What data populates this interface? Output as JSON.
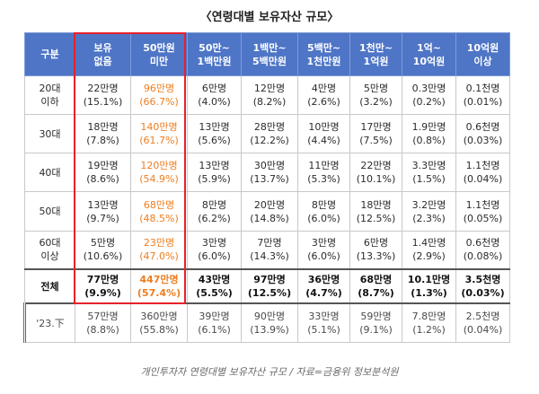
{
  "title": "〈연령대별 보유자산 규모〉",
  "headers": [
    [
      "구분"
    ],
    [
      "보유",
      "없음"
    ],
    [
      "50만원",
      "미만"
    ],
    [
      "50만~",
      "1백만원"
    ],
    [
      "1백만~",
      "5백만원"
    ],
    [
      "5백만~",
      "1천만원"
    ],
    [
      "1천만~",
      "1억원"
    ],
    [
      "1억~",
      "10억원"
    ],
    [
      "10억원",
      "이상"
    ]
  ],
  "rows": [
    {
      "label": [
        "20대",
        "이하"
      ],
      "cells": [
        [
          "22만명",
          "(15.1%)"
        ],
        [
          "96만명",
          "(66.7%)"
        ],
        [
          "6만명",
          "(4.0%)"
        ],
        [
          "12만명",
          "(8.2%)"
        ],
        [
          "4만명",
          "(2.6%)"
        ],
        [
          "5만명",
          "(3.2%)"
        ],
        [
          "0.3만명",
          "(0.2%)"
        ],
        [
          "0.1천명",
          "(0.01%)"
        ]
      ]
    },
    {
      "label": [
        "30대"
      ],
      "cells": [
        [
          "18만명",
          "(7.8%)"
        ],
        [
          "140만명",
          "(61.7%)"
        ],
        [
          "13만명",
          "(5.6%)"
        ],
        [
          "28만명",
          "(12.2%)"
        ],
        [
          "10만명",
          "(4.4%)"
        ],
        [
          "17만명",
          "(7.5%)"
        ],
        [
          "1.9만명",
          "(0.8%)"
        ],
        [
          "0.6천명",
          "(0.03%)"
        ]
      ]
    },
    {
      "label": [
        "40대"
      ],
      "cells": [
        [
          "19만명",
          "(8.6%)"
        ],
        [
          "120만명",
          "(54.9%)"
        ],
        [
          "13만명",
          "(5.9%)"
        ],
        [
          "30만명",
          "(13.7%)"
        ],
        [
          "11만명",
          "(5.3%)"
        ],
        [
          "22만명",
          "(10.1%)"
        ],
        [
          "3.3만명",
          "(1.5%)"
        ],
        [
          "1.1천명",
          "(0.04%)"
        ]
      ]
    },
    {
      "label": [
        "50대"
      ],
      "cells": [
        [
          "13만명",
          "(9.7%)"
        ],
        [
          "68만명",
          "(48.5%)"
        ],
        [
          "8만명",
          "(6.2%)"
        ],
        [
          "20만명",
          "(14.8%)"
        ],
        [
          "8만명",
          "(6.0%)"
        ],
        [
          "18만명",
          "(12.5%)"
        ],
        [
          "3.2만명",
          "(2.3%)"
        ],
        [
          "1.1천명",
          "(0.05%)"
        ]
      ]
    },
    {
      "label": [
        "60대",
        "이상"
      ],
      "cells": [
        [
          "5만명",
          "(10.6%)"
        ],
        [
          "23만명",
          "(47.0%)"
        ],
        [
          "3만명",
          "(6.0%)"
        ],
        [
          "7만명",
          "(14.3%)"
        ],
        [
          "3만명",
          "(6.0%)"
        ],
        [
          "6만명",
          "(13.3%)"
        ],
        [
          "1.4만명",
          "(2.9%)"
        ],
        [
          "0.6천명",
          "(0.08%)"
        ]
      ]
    }
  ],
  "total": {
    "label": "전체",
    "cells": [
      [
        "77만명",
        "(9.9%)"
      ],
      [
        "447만명",
        "(57.4%)"
      ],
      [
        "43만명",
        "(5.5%)"
      ],
      [
        "97만명",
        "(12.5%)"
      ],
      [
        "36만명",
        "(4.7%)"
      ],
      [
        "68만명",
        "(8.7%)"
      ],
      [
        "10.1만명",
        "(1.3%)"
      ],
      [
        "3.5천명",
        "(0.03%)"
      ]
    ]
  },
  "prev": {
    "label": "'23.下",
    "cells": [
      [
        "57만명",
        "(8.8%)"
      ],
      [
        "360만명",
        "(55.8%)"
      ],
      [
        "39만명",
        "(6.1%)"
      ],
      [
        "90만명",
        "(13.9%)"
      ],
      [
        "33만명",
        "(5.1%)"
      ],
      [
        "59만명",
        "(9.1%)"
      ],
      [
        "7.8만명",
        "(1.2%)"
      ],
      [
        "2.5천명",
        "(0.04%)"
      ]
    ]
  },
  "caption": "개인투자자 연령대별 보유자산 규모 / 자료=금융위 정보분석원",
  "colors": {
    "header_bg": "#4e75c6",
    "highlight_text": "#ee7d1f",
    "highlight_box": "#e8202a"
  }
}
